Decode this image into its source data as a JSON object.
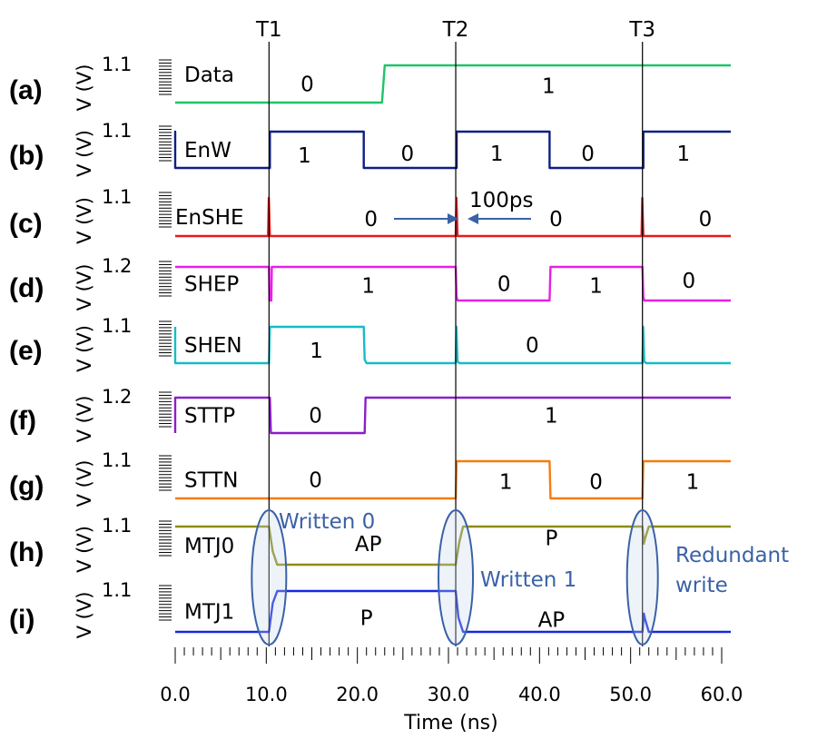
{
  "chart_data": {
    "type": "line",
    "title": "",
    "xlabel": "Time (ns)",
    "ylabel": "V (V)",
    "xlim": [
      0,
      60
    ],
    "x_ticks": [
      "0.0",
      "10.0",
      "20.0",
      "30.0",
      "40.0",
      "50.0",
      "60.0"
    ],
    "x_tick_values": [
      0,
      10,
      20,
      30,
      40,
      50,
      60
    ],
    "time_markers": [
      {
        "label": "T1",
        "x": 10.3
      },
      {
        "label": "T2",
        "x": 30.8
      },
      {
        "label": "T3",
        "x": 51.3
      }
    ],
    "panels": [
      {
        "id": "a",
        "letter": "(a)",
        "signal": "Data",
        "vmax_label": "1.1",
        "color": "#1fc46a",
        "points": [
          [
            0,
            0
          ],
          [
            22.7,
            0
          ],
          [
            23,
            1
          ],
          [
            61,
            1
          ]
        ],
        "states": [
          {
            "text": "0",
            "x": 14.5,
            "level": 0.5
          },
          {
            "text": "1",
            "x": 41,
            "level": 0.45
          }
        ]
      },
      {
        "id": "b",
        "letter": "(b)",
        "signal": "EnW",
        "vmax_label": "1.1",
        "color": "#0d1f86",
        "points": [
          [
            0,
            0
          ],
          [
            0,
            1
          ],
          [
            0,
            0
          ],
          [
            10.4,
            0
          ],
          [
            10.4,
            1
          ],
          [
            20.7,
            1
          ],
          [
            20.7,
            0
          ],
          [
            30.9,
            0
          ],
          [
            30.9,
            1
          ],
          [
            41.1,
            1
          ],
          [
            41.1,
            0
          ],
          [
            51.4,
            0
          ],
          [
            51.4,
            1
          ],
          [
            61,
            1
          ]
        ],
        "states": [
          {
            "text": "1",
            "x": 14.2,
            "level": 0.35
          },
          {
            "text": "0",
            "x": 25.5,
            "level": 0.4
          },
          {
            "text": "1",
            "x": 35.3,
            "level": 0.4
          },
          {
            "text": "0",
            "x": 45.3,
            "level": 0.4
          },
          {
            "text": "1",
            "x": 55.8,
            "level": 0.4
          }
        ]
      },
      {
        "id": "c",
        "letter": "(c)",
        "signal": "EnSHE",
        "vmax_label": "1.1",
        "color": "#e8191c",
        "points": [
          [
            0,
            0
          ],
          [
            10.2,
            0
          ],
          [
            10.28,
            1
          ],
          [
            10.4,
            0
          ],
          [
            30.8,
            0
          ],
          [
            30.88,
            1
          ],
          [
            31,
            0
          ],
          [
            51.2,
            0
          ],
          [
            51.28,
            1
          ],
          [
            51.4,
            0
          ],
          [
            61,
            0
          ]
        ],
        "states": [
          {
            "text": "0",
            "x": 21.5,
            "level": 0.45
          },
          {
            "text": "0",
            "x": 41.8,
            "level": 0.45
          },
          {
            "text": "0",
            "x": 58.2,
            "level": 0.45
          }
        ],
        "annotation": {
          "text": "100ps",
          "x": 35,
          "level": 0.95
        }
      },
      {
        "id": "d",
        "letter": "(d)",
        "signal": "SHEP",
        "vmax_label": "1.2",
        "color": "#e620e6",
        "points": [
          [
            0,
            1
          ],
          [
            10.3,
            1
          ],
          [
            10.35,
            0
          ],
          [
            10.55,
            0
          ],
          [
            10.6,
            1
          ],
          [
            30.8,
            1
          ],
          [
            30.9,
            0.1
          ],
          [
            31,
            0
          ],
          [
            41.1,
            0
          ],
          [
            41.2,
            1
          ],
          [
            51.3,
            1
          ],
          [
            51.4,
            0.1
          ],
          [
            51.5,
            0
          ],
          [
            61,
            0
          ]
        ],
        "states": [
          {
            "text": "1",
            "x": 21.2,
            "level": 0.45
          },
          {
            "text": "0",
            "x": 36.1,
            "level": 0.5
          },
          {
            "text": "1",
            "x": 46.2,
            "level": 0.45
          },
          {
            "text": "0",
            "x": 56.4,
            "level": 0.6
          }
        ]
      },
      {
        "id": "e",
        "letter": "(e)",
        "signal": "SHEN",
        "vmax_label": "1.1",
        "color": "#16bcc6",
        "points": [
          [
            0,
            1
          ],
          [
            0,
            0
          ],
          [
            10.3,
            0
          ],
          [
            10.4,
            1
          ],
          [
            20.7,
            1
          ],
          [
            20.8,
            0.1
          ],
          [
            21,
            0
          ],
          [
            30.8,
            0
          ],
          [
            30.88,
            1
          ],
          [
            31,
            0.05
          ],
          [
            31.2,
            0
          ],
          [
            51.3,
            0
          ],
          [
            51.38,
            1
          ],
          [
            51.5,
            0.05
          ],
          [
            51.7,
            0
          ],
          [
            61,
            0
          ]
        ],
        "states": [
          {
            "text": "1",
            "x": 15.5,
            "level": 0.35
          },
          {
            "text": "0",
            "x": 39.2,
            "level": 0.5
          }
        ]
      },
      {
        "id": "f",
        "letter": "(f)",
        "signal": "STTP",
        "vmax_label": "1.2",
        "color": "#8a1fc9",
        "points": [
          [
            0,
            0
          ],
          [
            0,
            1
          ],
          [
            10.4,
            1
          ],
          [
            10.5,
            0
          ],
          [
            20.8,
            0
          ],
          [
            20.9,
            1
          ],
          [
            61,
            1
          ]
        ],
        "states": [
          {
            "text": "0",
            "x": 15.4,
            "level": 0.5
          },
          {
            "text": "1",
            "x": 41.3,
            "level": 0.5
          }
        ]
      },
      {
        "id": "g",
        "letter": "(g)",
        "signal": "STTN",
        "vmax_label": "1.1",
        "color": "#f57d0f",
        "points": [
          [
            0,
            0
          ],
          [
            30.8,
            0
          ],
          [
            30.9,
            1
          ],
          [
            41.1,
            1
          ],
          [
            41.2,
            0
          ],
          [
            51.3,
            0
          ],
          [
            51.4,
            1
          ],
          [
            61,
            1
          ]
        ],
        "states": [
          {
            "text": "0",
            "x": 15.4,
            "level": 0.5
          },
          {
            "text": "1",
            "x": 36.3,
            "level": 0.45
          },
          {
            "text": "0",
            "x": 46.2,
            "level": 0.45
          },
          {
            "text": "1",
            "x": 56.8,
            "level": 0.45
          }
        ]
      },
      {
        "id": "h",
        "letter": "(h)",
        "signal": "MTJ0",
        "vmax_label": "1.1",
        "color": "#8c8c14",
        "points": [
          [
            0,
            1
          ],
          [
            10.3,
            1
          ],
          [
            10.7,
            0.35
          ],
          [
            11.2,
            0
          ],
          [
            30.8,
            0
          ],
          [
            31.2,
            0.6
          ],
          [
            31.6,
            1
          ],
          [
            51.3,
            1
          ],
          [
            51.45,
            0.55
          ],
          [
            51.6,
            0.7
          ],
          [
            52,
            1
          ],
          [
            61,
            1
          ]
        ],
        "states": [
          {
            "text": "AP",
            "x": 21.2,
            "level": 0.55
          },
          {
            "text": "P",
            "x": 41.3,
            "level": 0.7
          }
        ],
        "annotations": [
          {
            "text": "Written 0",
            "x": 10.9,
            "level": 0.82
          }
        ]
      },
      {
        "id": "i",
        "letter": "(i)",
        "signal": "MTJ1",
        "vmax_label": "1.1",
        "color": "#1429e0",
        "points": [
          [
            0,
            0
          ],
          [
            10.3,
            0
          ],
          [
            10.7,
            0.7
          ],
          [
            11.2,
            1
          ],
          [
            30.8,
            1
          ],
          [
            31.1,
            0.35
          ],
          [
            31.6,
            0
          ],
          [
            51.3,
            0
          ],
          [
            51.45,
            0.45
          ],
          [
            51.6,
            0.3
          ],
          [
            52,
            0
          ],
          [
            61,
            0
          ]
        ],
        "states": [
          {
            "text": "P",
            "x": 21,
            "level": 0.35
          },
          {
            "text": "AP",
            "x": 41.3,
            "level": 0.3
          }
        ],
        "annotations": [
          {
            "text": "Written 1",
            "x": 33.4,
            "level": 1.25
          },
          {
            "text": "Redundant",
            "x": 53,
            "level": 1.9
          },
          {
            "text": "write",
            "x": 53,
            "level": 1.2
          }
        ]
      }
    ]
  }
}
